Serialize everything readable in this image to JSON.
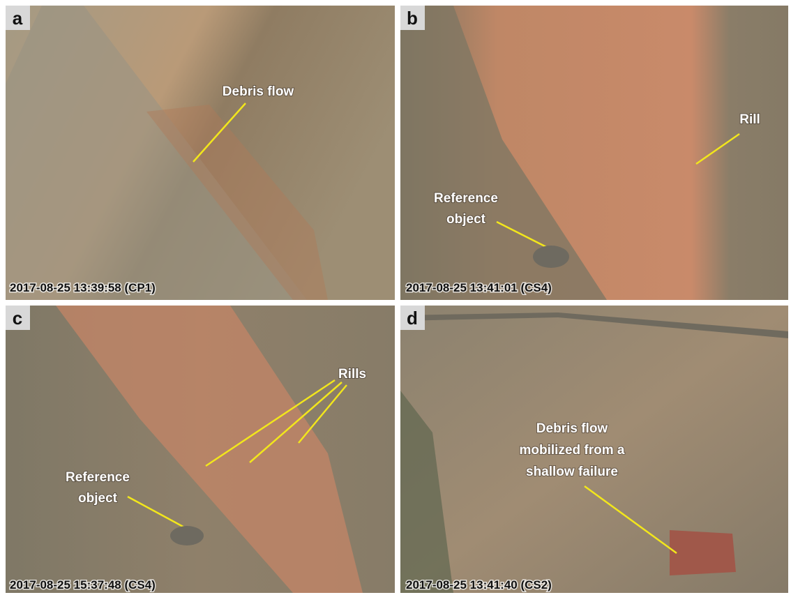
{
  "panels": [
    {
      "letter": "a",
      "timestamp": "2017-08-25 13:39:58 (CP1)",
      "annotations": [
        {
          "lines": [
            "Debris flow"
          ]
        }
      ]
    },
    {
      "letter": "b",
      "timestamp": "2017-08-25 13:41:01 (CS4)",
      "annotations": [
        {
          "lines": [
            "Rill"
          ]
        },
        {
          "lines": [
            "Reference",
            "object"
          ]
        }
      ]
    },
    {
      "letter": "c",
      "timestamp": "2017-08-25 15:37:48 (CS4)",
      "annotations": [
        {
          "lines": [
            "Rills"
          ]
        },
        {
          "lines": [
            "Reference",
            "object"
          ]
        }
      ]
    },
    {
      "letter": "d",
      "timestamp": "2017-08-25 13:41:40 (CS2)",
      "annotations": [
        {
          "lines": [
            "Debris flow",
            "mobilized from a",
            "shallow failure"
          ]
        }
      ]
    }
  ]
}
